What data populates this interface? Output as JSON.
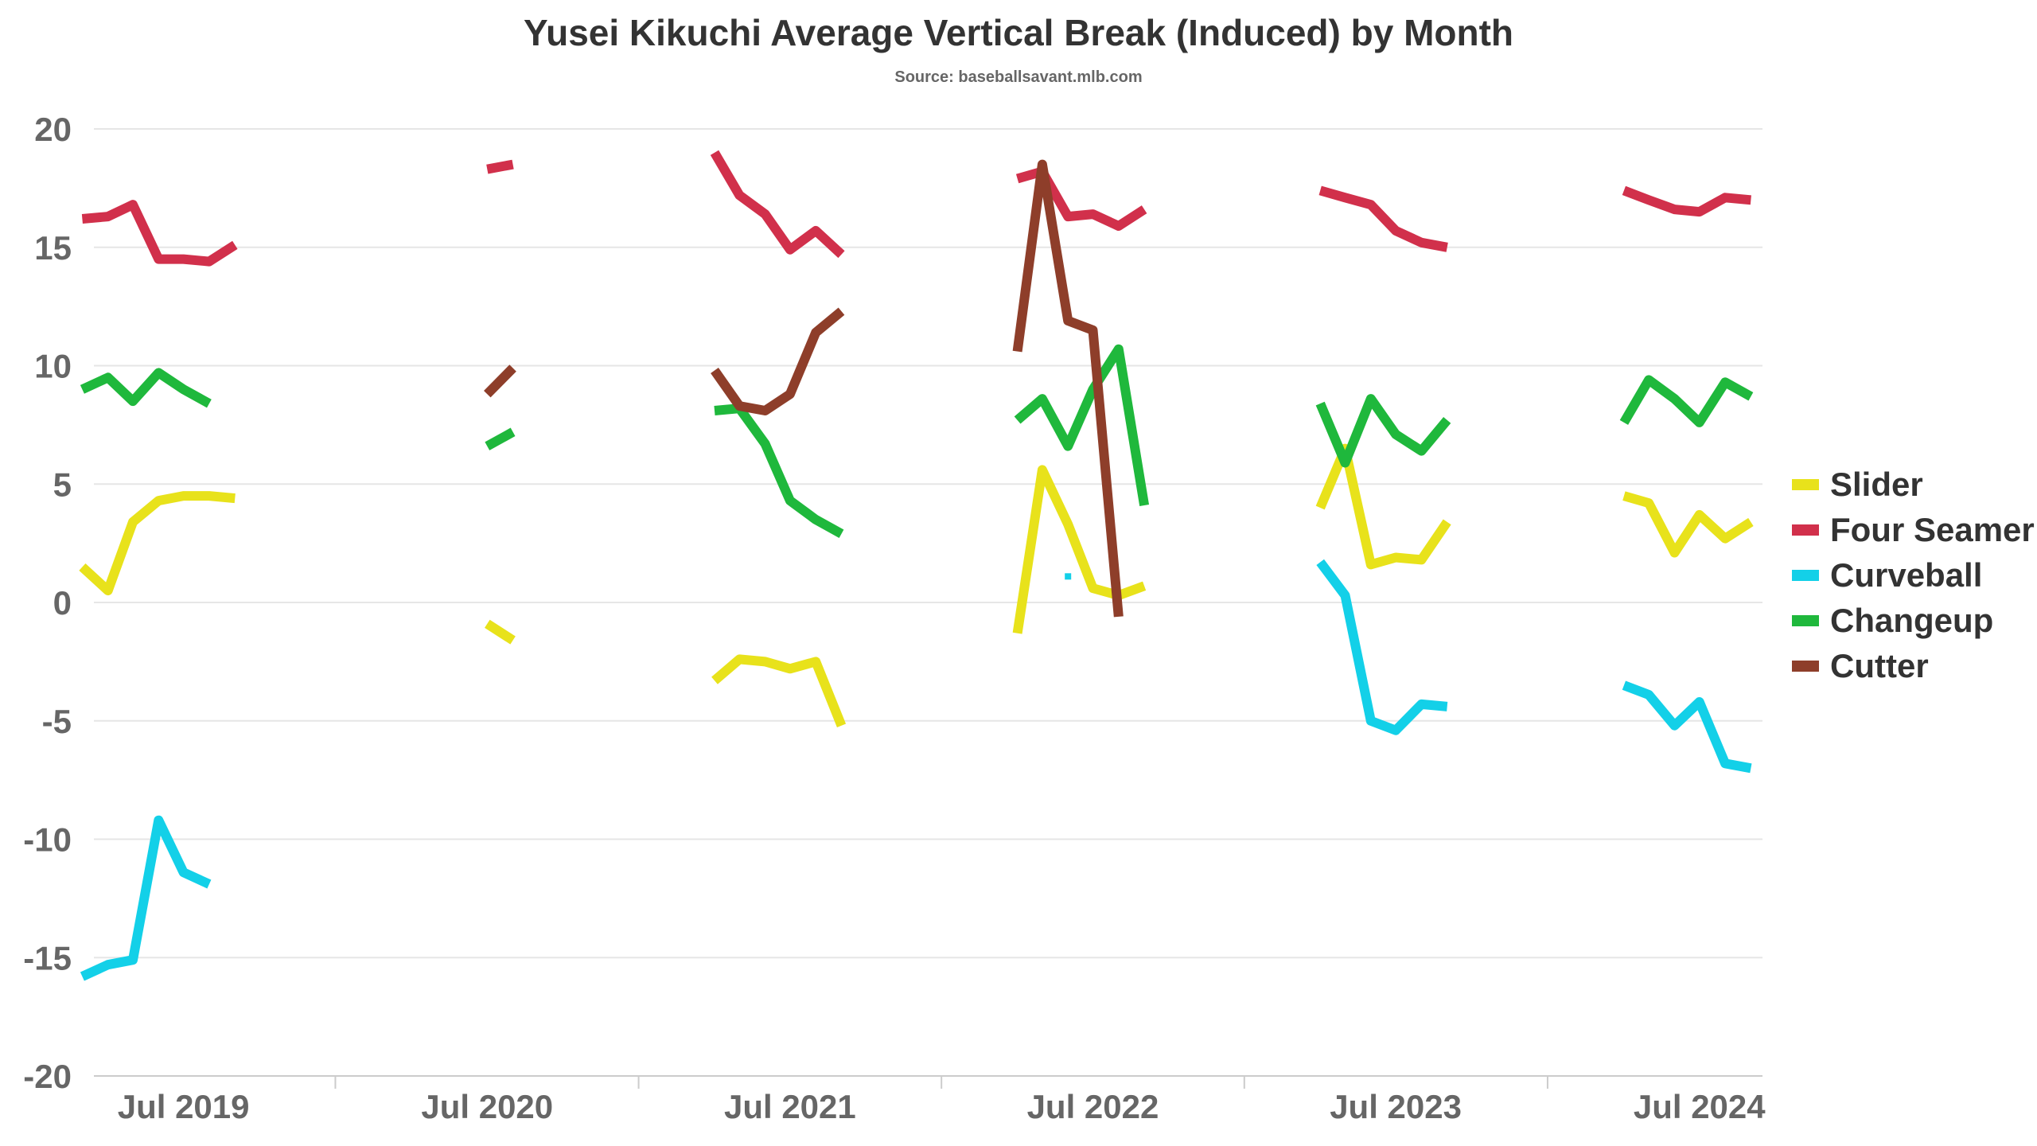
{
  "chart_data": {
    "type": "line",
    "title": "Yusei Kikuchi Average Vertical Break (Induced) by Month",
    "subtitle": "Source: baseballsavant.mlb.com",
    "xlabel": "",
    "ylabel": "",
    "ylim": [
      -20,
      20
    ],
    "yticks": [
      20,
      15,
      10,
      5,
      0,
      -5,
      -10,
      -15,
      -20
    ],
    "ytick_labels": [
      "20",
      "15",
      "10",
      "5",
      "0",
      "-5",
      "-10",
      "-15",
      "-20"
    ],
    "xlim": [
      "2019-03-15",
      "2024-09-15"
    ],
    "xticks": [
      {
        "label": "Jul 2019",
        "date": "2019-07-01"
      },
      {
        "label": "Jul 2020",
        "date": "2020-07-01"
      },
      {
        "label": "Jul 2021",
        "date": "2021-07-01"
      },
      {
        "label": "Jul 2022",
        "date": "2022-07-01"
      },
      {
        "label": "Jul 2023",
        "date": "2023-07-01"
      },
      {
        "label": "Jul 2024",
        "date": "2024-07-01"
      }
    ],
    "grid": true,
    "legend_position": "right",
    "series": [
      {
        "name": "Slider",
        "color": "#e8e21b",
        "points": [
          [
            "2019-03-01",
            1.5
          ],
          [
            "2019-04-01",
            0.5
          ],
          [
            "2019-05-01",
            3.4
          ],
          [
            "2019-06-01",
            4.3
          ],
          [
            "2019-07-01",
            4.5
          ],
          [
            "2019-08-01",
            4.5
          ],
          [
            "2019-09-01",
            4.4
          ],
          [
            null,
            null
          ],
          [
            "2020-07-01",
            -0.9
          ],
          [
            "2020-08-01",
            -1.6
          ],
          [
            null,
            null
          ],
          [
            "2021-04-01",
            -3.3
          ],
          [
            "2021-05-01",
            -2.4
          ],
          [
            "2021-06-01",
            -2.5
          ],
          [
            "2021-07-01",
            -2.8
          ],
          [
            "2021-08-01",
            -2.5
          ],
          [
            "2021-09-01",
            -5.2
          ],
          [
            null,
            null
          ],
          [
            "2022-04-01",
            -1.3
          ],
          [
            "2022-05-01",
            5.6
          ],
          [
            "2022-06-01",
            3.3
          ],
          [
            "2022-07-01",
            0.6
          ],
          [
            "2022-08-01",
            0.3
          ],
          [
            "2022-09-01",
            0.7
          ],
          [
            null,
            null
          ],
          [
            "2023-04-01",
            4.0
          ],
          [
            "2023-05-01",
            6.5
          ],
          [
            "2023-06-01",
            1.6
          ],
          [
            "2023-07-01",
            1.9
          ],
          [
            "2023-08-01",
            1.8
          ],
          [
            "2023-09-01",
            3.4
          ],
          [
            null,
            null
          ],
          [
            "2024-04-01",
            4.5
          ],
          [
            "2024-05-01",
            4.2
          ],
          [
            "2024-06-01",
            2.1
          ],
          [
            "2024-07-01",
            3.7
          ],
          [
            "2024-08-01",
            2.7
          ],
          [
            "2024-09-01",
            3.4
          ]
        ]
      },
      {
        "name": "Four Seamer",
        "color": "#d1304b",
        "points": [
          [
            "2019-03-01",
            16.2
          ],
          [
            "2019-04-01",
            16.3
          ],
          [
            "2019-05-01",
            16.8
          ],
          [
            "2019-06-01",
            14.5
          ],
          [
            "2019-07-01",
            14.5
          ],
          [
            "2019-08-01",
            14.4
          ],
          [
            "2019-09-01",
            15.1
          ],
          [
            null,
            null
          ],
          [
            "2020-07-01",
            18.3
          ],
          [
            "2020-08-01",
            18.5
          ],
          [
            null,
            null
          ],
          [
            "2021-04-01",
            19.0
          ],
          [
            "2021-05-01",
            17.2
          ],
          [
            "2021-06-01",
            16.4
          ],
          [
            "2021-07-01",
            14.9
          ],
          [
            "2021-08-01",
            15.7
          ],
          [
            "2021-09-01",
            14.7
          ],
          [
            null,
            null
          ],
          [
            "2022-04-01",
            17.9
          ],
          [
            "2022-05-01",
            18.2
          ],
          [
            "2022-06-01",
            16.3
          ],
          [
            "2022-07-01",
            16.4
          ],
          [
            "2022-08-01",
            15.9
          ],
          [
            "2022-09-01",
            16.6
          ],
          [
            null,
            null
          ],
          [
            "2023-04-01",
            17.4
          ],
          [
            "2023-05-01",
            17.1
          ],
          [
            "2023-06-01",
            16.8
          ],
          [
            "2023-07-01",
            15.7
          ],
          [
            "2023-08-01",
            15.2
          ],
          [
            "2023-09-01",
            15.0
          ],
          [
            null,
            null
          ],
          [
            "2024-04-01",
            17.4
          ],
          [
            "2024-05-01",
            17.0
          ],
          [
            "2024-06-01",
            16.6
          ],
          [
            "2024-07-01",
            16.5
          ],
          [
            "2024-08-01",
            17.1
          ],
          [
            "2024-09-01",
            17.0
          ]
        ]
      },
      {
        "name": "Curveball",
        "color": "#13d0e8",
        "points": [
          [
            "2019-03-01",
            -15.8
          ],
          [
            "2019-04-01",
            -15.3
          ],
          [
            "2019-05-01",
            -15.1
          ],
          [
            "2019-06-01",
            -9.2
          ],
          [
            "2019-07-01",
            -11.4
          ],
          [
            "2019-08-01",
            -11.9
          ],
          [
            null,
            null
          ],
          [
            "2022-06-01",
            1.1
          ],
          [
            null,
            null
          ],
          [
            "2023-04-01",
            1.7
          ],
          [
            "2023-05-01",
            0.3
          ],
          [
            "2023-06-01",
            -5.0
          ],
          [
            "2023-07-01",
            -5.4
          ],
          [
            "2023-08-01",
            -4.3
          ],
          [
            "2023-09-01",
            -4.4
          ],
          [
            null,
            null
          ],
          [
            "2024-04-01",
            -3.5
          ],
          [
            "2024-05-01",
            -3.9
          ],
          [
            "2024-06-01",
            -5.2
          ],
          [
            "2024-07-01",
            -4.2
          ],
          [
            "2024-08-01",
            -6.8
          ],
          [
            "2024-09-01",
            -7.0
          ]
        ]
      },
      {
        "name": "Changeup",
        "color": "#1fb83c",
        "points": [
          [
            "2019-03-01",
            9.0
          ],
          [
            "2019-04-01",
            9.5
          ],
          [
            "2019-05-01",
            8.5
          ],
          [
            "2019-06-01",
            9.7
          ],
          [
            "2019-07-01",
            9.0
          ],
          [
            "2019-08-01",
            8.4
          ],
          [
            null,
            null
          ],
          [
            "2020-07-01",
            6.6
          ],
          [
            "2020-08-01",
            7.2
          ],
          [
            null,
            null
          ],
          [
            "2021-04-01",
            8.1
          ],
          [
            "2021-05-01",
            8.2
          ],
          [
            "2021-06-01",
            6.7
          ],
          [
            "2021-07-01",
            4.3
          ],
          [
            "2021-08-01",
            3.5
          ],
          [
            "2021-09-01",
            2.9
          ],
          [
            null,
            null
          ],
          [
            "2022-04-01",
            7.7
          ],
          [
            "2022-05-01",
            8.6
          ],
          [
            "2022-06-01",
            6.6
          ],
          [
            "2022-07-01",
            9.0
          ],
          [
            "2022-08-01",
            10.7
          ],
          [
            "2022-09-01",
            4.1
          ],
          [
            null,
            null
          ],
          [
            "2023-04-01",
            8.4
          ],
          [
            "2023-05-01",
            5.9
          ],
          [
            "2023-06-01",
            8.6
          ],
          [
            "2023-07-01",
            7.1
          ],
          [
            "2023-08-01",
            6.4
          ],
          [
            "2023-09-01",
            7.7
          ],
          [
            null,
            null
          ],
          [
            "2024-04-01",
            7.6
          ],
          [
            "2024-05-01",
            9.4
          ],
          [
            "2024-06-01",
            8.6
          ],
          [
            "2024-07-01",
            7.6
          ],
          [
            "2024-08-01",
            9.3
          ],
          [
            "2024-09-01",
            8.7
          ]
        ]
      },
      {
        "name": "Cutter",
        "color": "#8e3e2a",
        "points": [
          [
            "2020-07-01",
            8.8
          ],
          [
            "2020-08-01",
            9.9
          ],
          [
            null,
            null
          ],
          [
            "2021-04-01",
            9.8
          ],
          [
            "2021-05-01",
            8.3
          ],
          [
            "2021-06-01",
            8.1
          ],
          [
            "2021-07-01",
            8.8
          ],
          [
            "2021-08-01",
            11.4
          ],
          [
            "2021-09-01",
            12.3
          ],
          [
            null,
            null
          ],
          [
            "2022-04-01",
            10.6
          ],
          [
            "2022-05-01",
            18.5
          ],
          [
            "2022-06-01",
            11.9
          ],
          [
            "2022-07-01",
            11.5
          ],
          [
            "2022-08-01",
            -0.6
          ]
        ]
      }
    ]
  }
}
